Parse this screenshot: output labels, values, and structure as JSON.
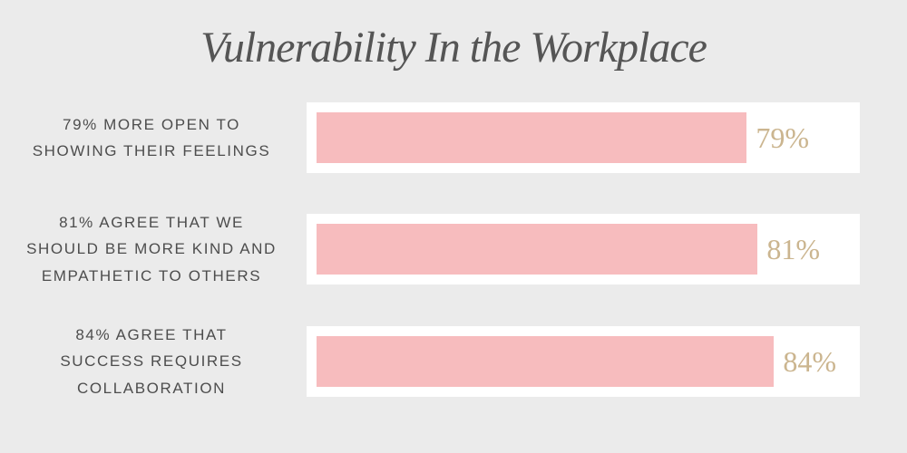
{
  "chart_data": {
    "type": "bar",
    "title": "Vulnerability In the Workplace",
    "categories": [
      "79% MORE OPEN TO SHOWING THEIR FEELINGS",
      "81% AGREE THAT WE SHOULD BE MORE KIND AND EMPATHETIC TO OTHERS",
      "84% AGREE THAT SUCCESS REQUIRES COLLABORATION"
    ],
    "values": [
      79,
      81,
      84
    ],
    "value_labels": [
      "79%",
      "81%",
      "84%"
    ],
    "xlim": [
      0,
      100
    ],
    "grid": false,
    "colors": {
      "background": "#ebebeb",
      "track": "#ffffff",
      "bar": "#f7bcbe",
      "value_text": "#cbb58f",
      "label_text": "#4d4d4d",
      "title_text": "#555555"
    },
    "rows": [
      {
        "label_lines": [
          "79% MORE OPEN TO",
          "SHOWING THEIR FEELINGS"
        ],
        "value": 79,
        "value_label": "79%"
      },
      {
        "label_lines": [
          "81% AGREE THAT WE",
          "SHOULD BE MORE KIND AND",
          "EMPATHETIC TO OTHERS"
        ],
        "value": 81,
        "value_label": "81%"
      },
      {
        "label_lines": [
          "84% AGREE THAT",
          "SUCCESS REQUIRES",
          "COLLABORATION"
        ],
        "value": 84,
        "value_label": "84%"
      }
    ]
  }
}
